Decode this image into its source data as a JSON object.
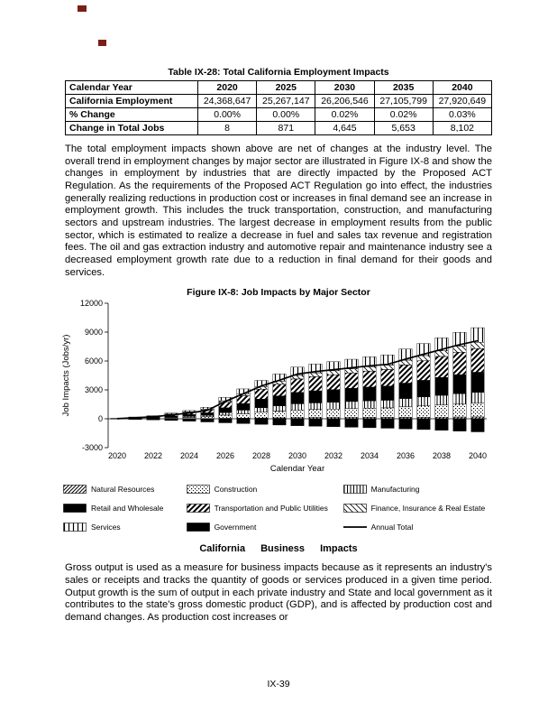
{
  "table": {
    "title": "Table IX-28: Total California Employment Impacts",
    "header": [
      "Calendar Year",
      "2020",
      "2025",
      "2030",
      "2035",
      "2040"
    ],
    "rows": [
      [
        "California Employment",
        "24,368,647",
        "25,267,147",
        "26,206,546",
        "27,105,799",
        "27,920,649"
      ],
      [
        "% Change",
        "0.00%",
        "0.00%",
        "0.02%",
        "0.02%",
        "0.03%"
      ],
      [
        "Change in Total Jobs",
        "8",
        "871",
        "4,645",
        "5,653",
        "8,102"
      ]
    ]
  },
  "paragraphs": {
    "p1": "The total employment impacts shown above are net of changes at the industry level. The overall trend in employment changes by major sector are illustrated in Figure IX-8 and show the changes in employment by industries that are directly impacted by the Proposed ACT Regulation. As the requirements of the Proposed ACT Regulation go into effect, the industries generally realizing reductions in production cost or increases in final demand see an increase in employment growth. This includes the truck transportation, construction, and manufacturing sectors and upstream industries. The largest decrease in employment results from the public sector, which is estimated to realize a decrease in fuel and sales tax revenue and registration fees. The oil and gas extraction industry and automotive repair and maintenance industry see a decreased employment growth rate due to a reduction in final demand for their goods and services.",
    "p2": "Gross output is used as a measure for business impacts because as it represents an industry's sales or receipts and tracks the quantity of goods or services produced in a given time period. Output growth is the sum of output in each private industry and State and local government as it contributes to the state's gross domestic product (GDP), and is affected by production cost and demand changes. As production cost increases or"
  },
  "chart_data": {
    "type": "bar",
    "stacked": true,
    "title": "Figure IX-8: Job Impacts by Major Sector",
    "xlabel": "Calendar Year",
    "ylabel": "Job Impacts (Jobs/yr)",
    "ylim": [
      -3000,
      12000
    ],
    "yticks": [
      -3000,
      0,
      3000,
      6000,
      9000,
      12000
    ],
    "xticks": [
      2020,
      2022,
      2024,
      2026,
      2028,
      2030,
      2032,
      2034,
      2036,
      2038,
      2040
    ],
    "x": [
      2020,
      2021,
      2022,
      2023,
      2024,
      2025,
      2026,
      2027,
      2028,
      2029,
      2030,
      2031,
      2032,
      2033,
      2034,
      2035,
      2036,
      2037,
      2038,
      2039,
      2040
    ],
    "series": [
      {
        "name": "Natural Resources",
        "pattern": "hatch-diagonal",
        "values": [
          1,
          4,
          6,
          12,
          17,
          24,
          44,
          62,
          80,
          93,
          107,
          114,
          119,
          124,
          129,
          133,
          145,
          156,
          168,
          180,
          189
        ]
      },
      {
        "name": "Construction",
        "pattern": "dots",
        "values": [
          6,
          27,
          48,
          87,
          128,
          180,
          333,
          465,
          597,
          698,
          805,
          852,
          890,
          927,
          965,
          995,
          1088,
          1173,
          1260,
          1347,
          1419
        ]
      },
      {
        "name": "Manufacturing",
        "pattern": "vertical-lines",
        "values": [
          5,
          22,
          38,
          70,
          102,
          144,
          266,
          372,
          478,
          558,
          644,
          682,
          712,
          742,
          772,
          796,
          870,
          938,
          1008,
          1078,
          1135
        ]
      },
      {
        "name": "Retail and Wholesale",
        "pattern": "solid-black",
        "values": [
          8,
          40,
          70,
          128,
          187,
          264,
          488,
          682,
          876,
          1023,
          1180,
          1250,
          1305,
          1360,
          1415,
          1459,
          1595,
          1720,
          1848,
          1976,
          2082
        ]
      },
      {
        "name": "Transportation and Public Utilities",
        "pattern": "hatch-diagonal-bold",
        "values": [
          10,
          47,
          83,
          151,
          221,
          312,
          577,
          806,
          1035,
          1209,
          1395,
          1477,
          1542,
          1607,
          1672,
          1725,
          1885,
          2033,
          2184,
          2335,
          2460
        ]
      },
      {
        "name": "Finance, Insurance & Real Estate",
        "pattern": "hatch-diagonal-light",
        "values": [
          3,
          13,
          22,
          41,
          60,
          84,
          155,
          217,
          279,
          326,
          376,
          398,
          415,
          433,
          450,
          464,
          508,
          547,
          588,
          629,
          662
        ]
      },
      {
        "name": "Services",
        "pattern": "vertical-lines-wide",
        "values": [
          6,
          29,
          51,
          93,
          136,
          192,
          355,
          496,
          637,
          744,
          858,
          909,
          949,
          989,
          1029,
          1061,
          1160,
          1251,
          1344,
          1437,
          1514
        ]
      },
      {
        "name": "Government",
        "pattern": "solid-black",
        "values": [
          -30,
          -80,
          -120,
          -180,
          -250,
          -330,
          -420,
          -500,
          -580,
          -650,
          -720,
          -780,
          -830,
          -880,
          -930,
          -980,
          -1050,
          -1120,
          -1200,
          -1280,
          -1360
        ]
      }
    ],
    "line": {
      "name": "Annual Total",
      "values": [
        8,
        100,
        200,
        400,
        600,
        871,
        1800,
        2600,
        3400,
        4000,
        4645,
        4900,
        5100,
        5300,
        5500,
        5653,
        6200,
        6700,
        7200,
        7700,
        8102
      ]
    },
    "legend_position": "below"
  },
  "heading2": "California Business Impacts",
  "page_number": "IX-39"
}
